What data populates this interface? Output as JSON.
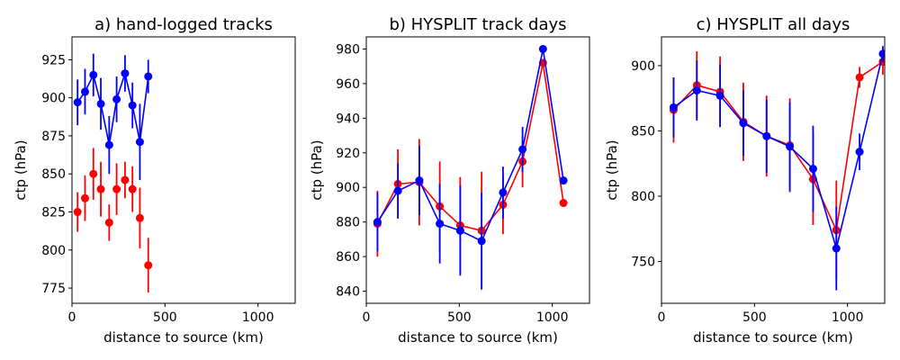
{
  "chart_data": [
    {
      "type": "scatter",
      "title": "a) hand-logged tracks",
      "xlabel": "distance to source (km)",
      "ylabel": "ctp (hPa)",
      "xlim": [
        0,
        1200
      ],
      "ylim": [
        765,
        940
      ],
      "xticks": [
        0,
        500,
        1000
      ],
      "yticks": [
        775,
        800,
        825,
        850,
        875,
        900,
        925
      ],
      "series": [
        {
          "name": "blue",
          "color": "#0000ff",
          "connected": true,
          "x": [
            30,
            70,
            115,
            155,
            200,
            240,
            285,
            325,
            365,
            410
          ],
          "y": [
            897,
            904,
            915,
            896,
            869,
            899,
            916,
            895,
            871,
            914
          ],
          "err": [
            15,
            15,
            14,
            17,
            19,
            15,
            12,
            15,
            25,
            11
          ]
        },
        {
          "name": "red",
          "color": "#ff0000",
          "connected": false,
          "x": [
            30,
            70,
            115,
            155,
            200,
            240,
            285,
            325,
            365,
            410
          ],
          "y": [
            825,
            834,
            850,
            840,
            818,
            840,
            846,
            840,
            821,
            790
          ],
          "err": [
            13,
            15,
            17,
            18,
            12,
            17,
            12,
            15,
            20,
            18
          ]
        }
      ]
    },
    {
      "type": "line",
      "title": "b) HYSPLIT track days",
      "xlabel": "distance to source (km)",
      "ylabel": "ctp (hPa)",
      "xlim": [
        0,
        1200
      ],
      "ylim": [
        833,
        987
      ],
      "xticks": [
        0,
        500,
        1000
      ],
      "yticks": [
        840,
        860,
        880,
        900,
        920,
        940,
        960,
        980
      ],
      "series": [
        {
          "name": "red",
          "color": "#ff0000",
          "connected": true,
          "x": [
            60,
            170,
            285,
            395,
            505,
            620,
            735,
            840,
            950,
            1060
          ],
          "y": [
            879,
            902,
            903,
            889,
            878,
            875,
            890,
            915,
            972,
            891
          ],
          "err": [
            19,
            20,
            25,
            26,
            28,
            34,
            17,
            15,
            0,
            0
          ]
        },
        {
          "name": "blue",
          "color": "#0000ff",
          "connected": true,
          "x": [
            60,
            170,
            285,
            395,
            505,
            620,
            735,
            840,
            950,
            1060
          ],
          "y": [
            880,
            898,
            904,
            879,
            875,
            869,
            897,
            922,
            980,
            904
          ],
          "err": [
            17,
            16,
            20,
            23,
            26,
            28,
            15,
            13,
            0,
            0
          ]
        }
      ]
    },
    {
      "type": "line",
      "title": "c) HYSPLIT all days",
      "xlabel": "distance to source (km)",
      "ylabel": "ctp (hPa)",
      "xlim": [
        0,
        1200
      ],
      "ylim": [
        718,
        922
      ],
      "xticks": [
        0,
        500,
        1000
      ],
      "yticks": [
        750,
        800,
        850,
        900
      ],
      "series": [
        {
          "name": "red",
          "color": "#ff0000",
          "connected": true,
          "x": [
            65,
            190,
            315,
            440,
            565,
            690,
            815,
            940,
            1065,
            1190
          ],
          "y": [
            866,
            885,
            880,
            857,
            846,
            839,
            813,
            774,
            891,
            903
          ],
          "err": [
            25,
            26,
            27,
            30,
            31,
            36,
            35,
            38,
            8,
            10
          ]
        },
        {
          "name": "blue",
          "color": "#0000ff",
          "connected": true,
          "x": [
            65,
            190,
            315,
            440,
            565,
            690,
            815,
            940,
            1065,
            1190
          ],
          "y": [
            868,
            881,
            877,
            856,
            846,
            838,
            821,
            760,
            834,
            909
          ],
          "err": [
            23,
            23,
            24,
            25,
            28,
            34,
            33,
            32,
            14,
            6
          ]
        }
      ]
    }
  ]
}
